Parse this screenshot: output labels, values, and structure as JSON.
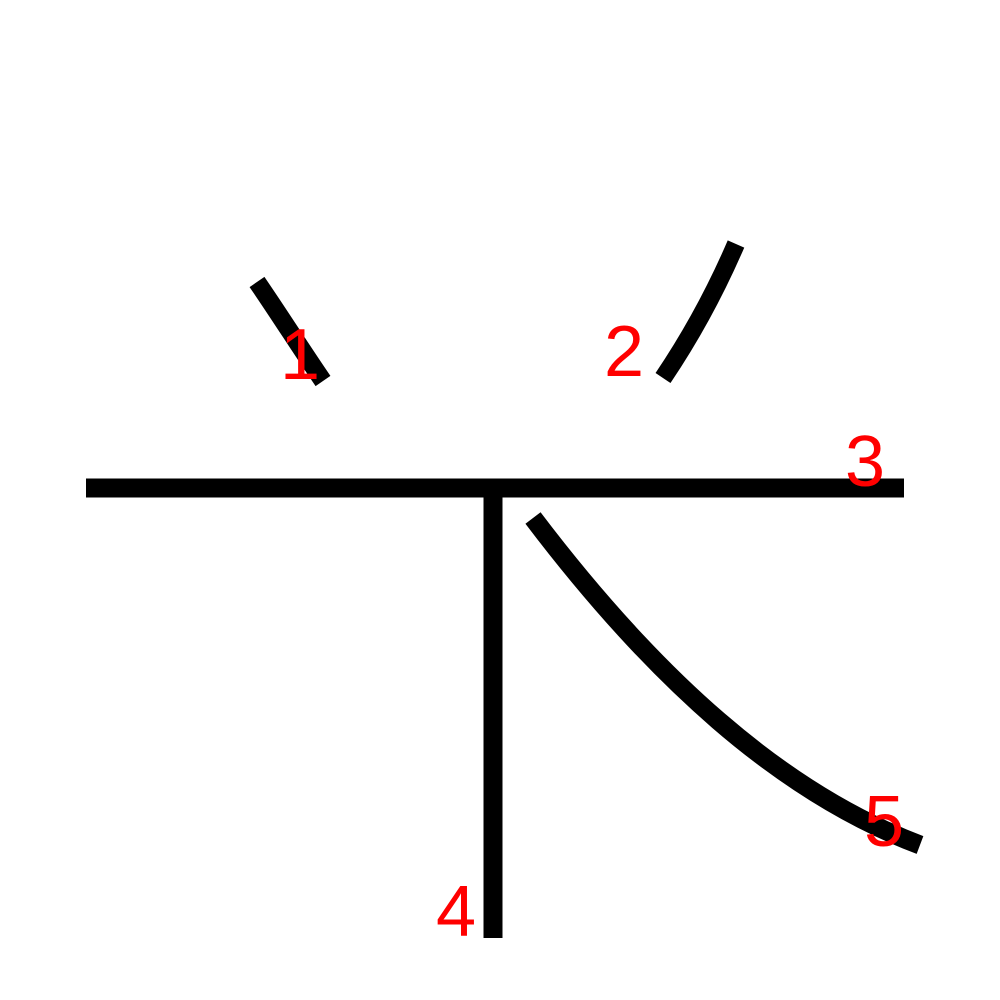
{
  "diagram": {
    "stroke_color": "#000000",
    "label_color": "#ff0000",
    "background": "#ffffff",
    "strokes": [
      {
        "order": 1,
        "label": "1",
        "shape": "short-falling-dot-stroke"
      },
      {
        "order": 2,
        "label": "2",
        "shape": "short-rising-curved-stroke"
      },
      {
        "order": 3,
        "label": "3",
        "shape": "horizontal-stroke"
      },
      {
        "order": 4,
        "label": "4",
        "shape": "vertical-stroke"
      },
      {
        "order": 5,
        "label": "5",
        "shape": "curved-right-falling-stroke"
      }
    ]
  }
}
